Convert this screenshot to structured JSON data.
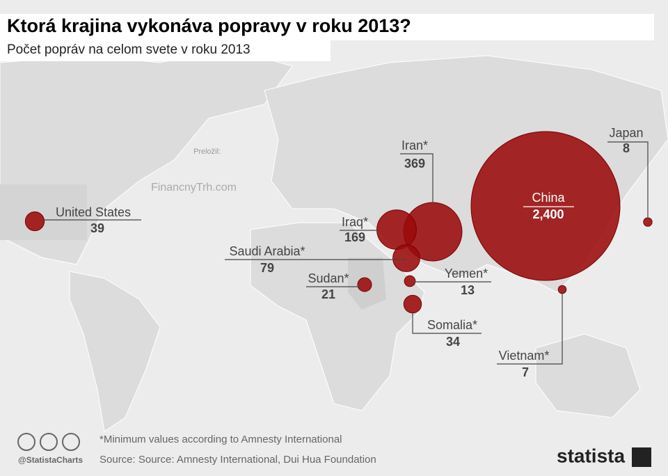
{
  "chart_data": {
    "type": "bubble",
    "title": "Ktorá krajina vykonáva popravy v roku 2013?",
    "subtitle": "Počet popráv na celom svete v roku 2013",
    "categories": [
      "United States",
      "Iran*",
      "Iraq*",
      "Saudi Arabia*",
      "Sudan*",
      "Yemen*",
      "Somalia*",
      "China",
      "Japan",
      "Vietnam*"
    ],
    "values": [
      39,
      369,
      169,
      79,
      21,
      13,
      34,
      2400,
      8,
      7
    ],
    "value_labels": [
      "39",
      "369",
      "169",
      "79",
      "21",
      "13",
      "34",
      "2,400",
      "8",
      "7"
    ],
    "color": "#9b0a0a",
    "translated_by": "Preložil:",
    "watermark": "FinancnyTrh.com",
    "footnote": "*Minimum values according to Amnesty International",
    "source": "Source: Source: Amnesty International, Dui Hua Foundation",
    "handle": "@StatistaCharts",
    "brand": "statista"
  }
}
